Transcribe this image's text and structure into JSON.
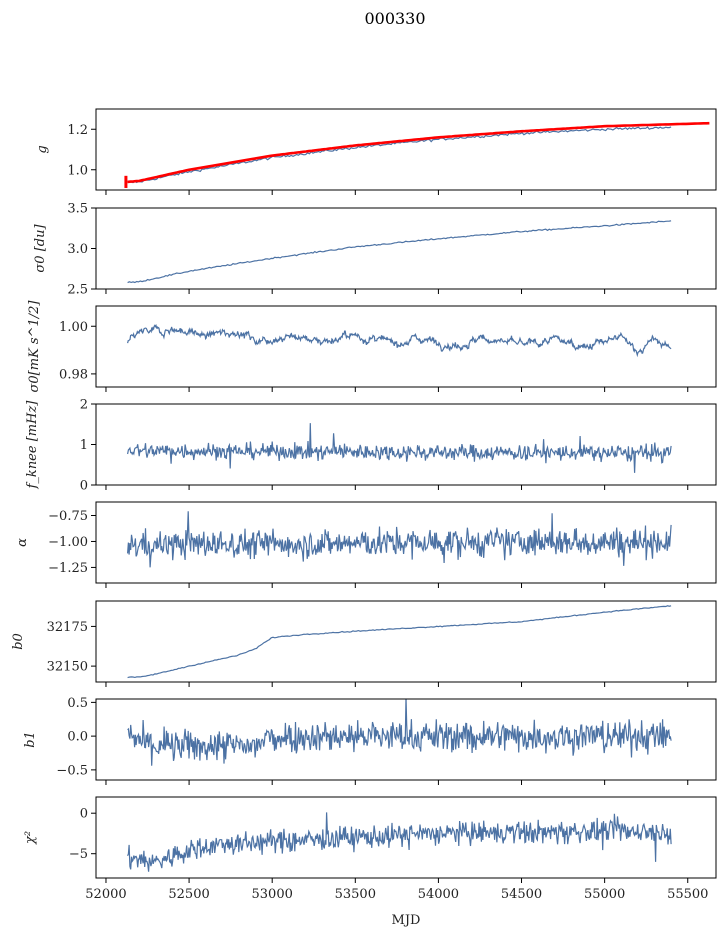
{
  "figure": {
    "title": "000330"
  },
  "chart_data": {
    "type": "line",
    "title": "000330",
    "xlabel": "MJD",
    "xlim": [
      51940,
      55670
    ],
    "xticks": [
      52000,
      52500,
      53000,
      53500,
      54000,
      54500,
      55000,
      55500
    ],
    "xtick_labels": [
      "52000",
      "52500",
      "53000",
      "53500",
      "54000",
      "54500",
      "55000",
      "55500"
    ],
    "x_data_range": [
      52130,
      55400
    ],
    "series_color": "#4c72a4",
    "overlay_color": "#ff0000",
    "grid": false,
    "legend": "none",
    "panels": [
      {
        "id": "g",
        "ylabel": "g",
        "ylim": [
          0.9,
          1.3
        ],
        "yticks": [
          1.0,
          1.2
        ],
        "ytick_labels": [
          "1.0",
          "1.2"
        ],
        "kind": "smooth",
        "noise": 0.003,
        "keypoints": [
          [
            52130,
            0.935
          ],
          [
            52200,
            0.94
          ],
          [
            52500,
            0.99
          ],
          [
            53000,
            1.06
          ],
          [
            53500,
            1.11
          ],
          [
            54000,
            1.15
          ],
          [
            54500,
            1.18
          ],
          [
            55000,
            1.2
          ],
          [
            55400,
            1.21
          ]
        ],
        "overlay": {
          "name": "red fit",
          "keypoints": [
            [
              52130,
              0.94
            ],
            [
              52200,
              0.945
            ],
            [
              52500,
              1.0
            ],
            [
              53000,
              1.07
            ],
            [
              53500,
              1.12
            ],
            [
              54000,
              1.16
            ],
            [
              54500,
              1.19
            ],
            [
              55000,
              1.215
            ],
            [
              55630,
              1.23
            ]
          ],
          "spike_at": 52120,
          "spike_range": [
            0.91,
            0.97
          ]
        }
      },
      {
        "id": "sigma0-du",
        "ylabel": "σ0 [du]",
        "ylim": [
          2.5,
          3.5
        ],
        "yticks": [
          2.5,
          3.0,
          3.5
        ],
        "ytick_labels": [
          "2.5",
          "3.0",
          "3.5"
        ],
        "kind": "smooth",
        "noise": 0.004,
        "keypoints": [
          [
            52130,
            2.58
          ],
          [
            52200,
            2.59
          ],
          [
            52500,
            2.72
          ],
          [
            53000,
            2.88
          ],
          [
            53500,
            3.02
          ],
          [
            54000,
            3.12
          ],
          [
            54500,
            3.21
          ],
          [
            55000,
            3.28
          ],
          [
            55400,
            3.34
          ]
        ]
      },
      {
        "id": "sigma0-mk",
        "ylabel": "σ0[mK s^1/2]",
        "ylim": [
          0.9745,
          1.0085
        ],
        "yticks": [
          0.98,
          1.0
        ],
        "ytick_labels": [
          "0.98",
          "1.00"
        ],
        "kind": "wander",
        "noise": 0.0009,
        "keypoints": [
          [
            52130,
            0.993
          ],
          [
            52200,
            0.997
          ],
          [
            52400,
            0.999
          ],
          [
            52600,
            0.996
          ],
          [
            52800,
            0.998
          ],
          [
            52900,
            0.994
          ],
          [
            53100,
            0.996
          ],
          [
            53300,
            0.994
          ],
          [
            53500,
            0.996
          ],
          [
            53700,
            0.993
          ],
          [
            53900,
            0.995
          ],
          [
            54100,
            0.992
          ],
          [
            54300,
            0.995
          ],
          [
            54500,
            0.992
          ],
          [
            54700,
            0.994
          ],
          [
            54900,
            0.992
          ],
          [
            55100,
            0.995
          ],
          [
            55200,
            0.99
          ],
          [
            55300,
            0.994
          ],
          [
            55400,
            0.991
          ]
        ]
      },
      {
        "id": "fknee",
        "ylabel": "f_knee [mHz]",
        "ylim": [
          0,
          2
        ],
        "yticks": [
          0,
          1,
          2
        ],
        "ytick_labels": [
          "0",
          "1",
          "2"
        ],
        "kind": "noisy",
        "noise": 0.1,
        "keypoints": [
          [
            52130,
            0.85
          ],
          [
            55400,
            0.78
          ]
        ]
      },
      {
        "id": "alpha",
        "ylabel": "α",
        "ylim": [
          -1.4,
          -0.62
        ],
        "yticks": [
          -1.25,
          -1.0,
          -0.75
        ],
        "ytick_labels": [
          "−1.25",
          "−1.00",
          "−0.75"
        ],
        "kind": "noisy",
        "noise": 0.07,
        "keypoints": [
          [
            52130,
            -1.03
          ],
          [
            55400,
            -1.0
          ]
        ]
      },
      {
        "id": "b0",
        "ylabel": "b0",
        "ylim": [
          32140,
          32191
        ],
        "yticks": [
          32150,
          32175
        ],
        "ytick_labels": [
          "32150",
          "32175"
        ],
        "kind": "smooth",
        "noise": 0.15,
        "keypoints": [
          [
            52130,
            32143
          ],
          [
            52200,
            32143
          ],
          [
            52300,
            32145
          ],
          [
            52500,
            32150
          ],
          [
            52800,
            32157
          ],
          [
            52900,
            32161
          ],
          [
            53000,
            32168
          ],
          [
            53200,
            32170
          ],
          [
            53500,
            32172
          ],
          [
            54000,
            32175
          ],
          [
            54500,
            32178
          ],
          [
            55000,
            32184
          ],
          [
            55400,
            32188
          ]
        ]
      },
      {
        "id": "b1",
        "ylabel": "b1",
        "ylim": [
          -0.65,
          0.55
        ],
        "yticks": [
          -0.5,
          0.0,
          0.5
        ],
        "ytick_labels": [
          "−0.5",
          "0.0",
          "0.5"
        ],
        "kind": "noisy",
        "noise": 0.12,
        "keypoints": [
          [
            52130,
            0.0
          ],
          [
            52300,
            -0.15
          ],
          [
            52600,
            -0.15
          ],
          [
            52900,
            -0.15
          ],
          [
            53000,
            0.0
          ],
          [
            54000,
            0.0
          ],
          [
            55400,
            0.0
          ]
        ]
      },
      {
        "id": "chi2",
        "ylabel": "χ²",
        "ylim": [
          -8,
          2
        ],
        "yticks": [
          -5,
          0
        ],
        "ytick_labels": [
          "−5",
          "0"
        ],
        "kind": "noisy",
        "noise": 0.7,
        "keypoints": [
          [
            52130,
            -5.5
          ],
          [
            52300,
            -6.0
          ],
          [
            52600,
            -4.0
          ],
          [
            53000,
            -3.5
          ],
          [
            53500,
            -3.0
          ],
          [
            54000,
            -2.5
          ],
          [
            54500,
            -2.4
          ],
          [
            55000,
            -2.2
          ],
          [
            55400,
            -2.3
          ]
        ]
      }
    ]
  }
}
